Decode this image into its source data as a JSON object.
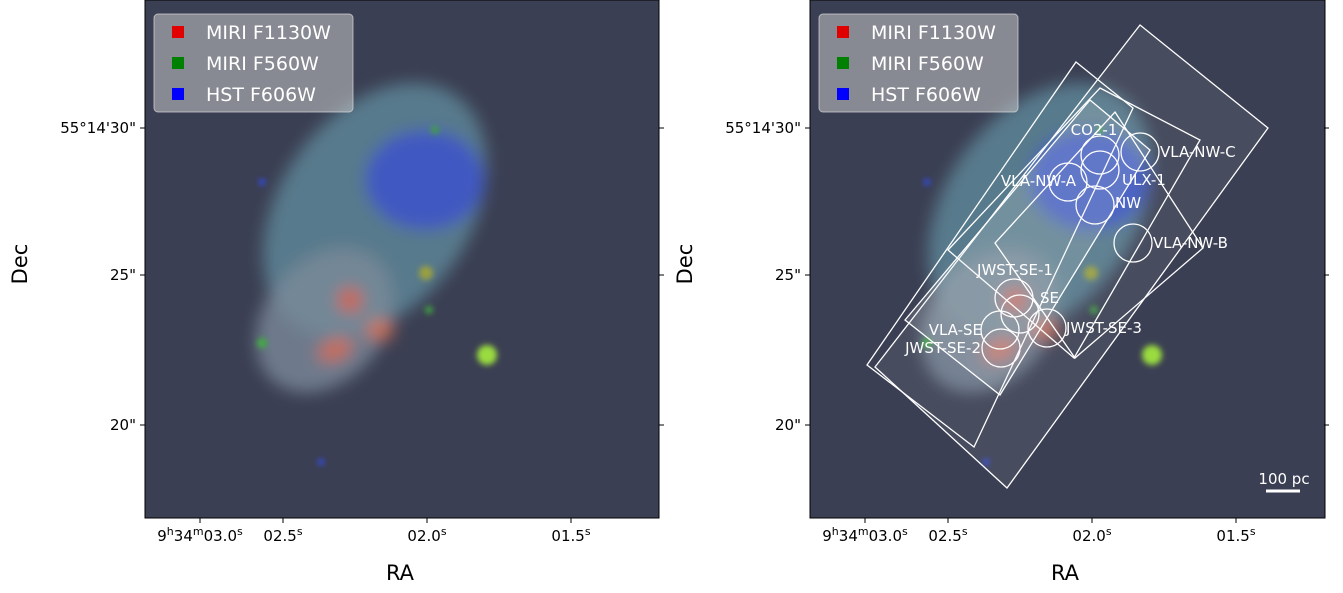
{
  "panels": [
    {
      "y_label": "Dec",
      "x_label": "RA",
      "y_ticks": [
        "55°14'30\"",
        "25\"",
        "20\""
      ],
      "x_ticks": [
        [
          "9",
          "h",
          "34",
          "m",
          "03.0",
          "s"
        ],
        [
          "02.5",
          "s"
        ],
        [
          "02.0",
          "s"
        ],
        [
          "01.5",
          "s"
        ]
      ],
      "legend": [
        {
          "label": "MIRI F1130W",
          "color": "#e00000"
        },
        {
          "label": "MIRI F560W",
          "color": "#008000"
        },
        {
          "label": "HST F606W",
          "color": "#0000ff"
        }
      ]
    },
    {
      "y_label": "Dec",
      "x_label": "RA",
      "y_ticks": [
        "55°14'30\"",
        "25\"",
        "20\""
      ],
      "x_ticks": [
        [
          "9",
          "h",
          "34",
          "m",
          "03.0",
          "s"
        ],
        [
          "02.5",
          "s"
        ],
        [
          "02.0",
          "s"
        ],
        [
          "01.5",
          "s"
        ]
      ],
      "legend": [
        {
          "label": "MIRI F1130W",
          "color": "#e00000"
        },
        {
          "label": "MIRI F560W",
          "color": "#008000"
        },
        {
          "label": "HST F606W",
          "color": "#0000ff"
        }
      ],
      "regions": [
        "CO2-1",
        "VLA-NW-C",
        "VLA-NW-A",
        "ULX-1",
        "NW",
        "VLA-NW-B",
        "JWST-SE-1",
        "SE",
        "VLA-SE",
        "JWST-SE-3",
        "JWST-SE-2"
      ],
      "scale_bar": "100 pc"
    }
  ]
}
